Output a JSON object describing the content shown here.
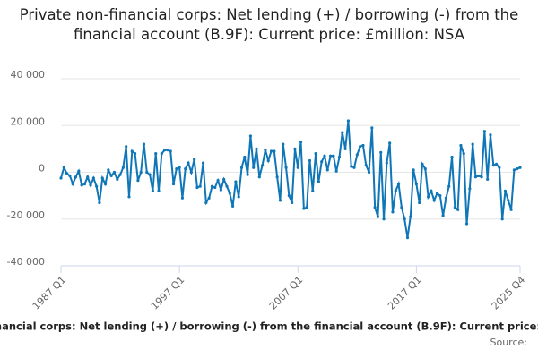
{
  "chart_data": {
    "type": "line",
    "title": "Private non-financial corps: Net lending (+) / borrowing (-) from the financial account (B.9F): Current price: £million: NSA",
    "source": "Source:",
    "categories": [
      "1987 Q1",
      null,
      null,
      null,
      null,
      null,
      null,
      null,
      null,
      null,
      null,
      null,
      null,
      null,
      null,
      null,
      null,
      null,
      null,
      null,
      null,
      null,
      null,
      null,
      null,
      null,
      null,
      null,
      null,
      null,
      null,
      null,
      null,
      null,
      null,
      null,
      null,
      null,
      null,
      null,
      "1997 Q1",
      null,
      null,
      null,
      null,
      null,
      null,
      null,
      null,
      null,
      null,
      null,
      null,
      null,
      null,
      null,
      null,
      null,
      null,
      null,
      null,
      null,
      null,
      null,
      null,
      null,
      null,
      null,
      null,
      null,
      null,
      null,
      null,
      null,
      null,
      null,
      null,
      null,
      null,
      null,
      "2007 Q1",
      null,
      null,
      null,
      null,
      null,
      null,
      null,
      null,
      null,
      null,
      null,
      null,
      null,
      null,
      null,
      null,
      null,
      null,
      null,
      null,
      null,
      null,
      null,
      null,
      null,
      null,
      null,
      null,
      null,
      null,
      null,
      null,
      null,
      null,
      null,
      null,
      null,
      null,
      null,
      "2017 Q1",
      null,
      null,
      null,
      null,
      null,
      null,
      null,
      null,
      null,
      null,
      null,
      null,
      null,
      null,
      null,
      null,
      null,
      null,
      null,
      null,
      null,
      null,
      null,
      null,
      null,
      null,
      null,
      null,
      null,
      null,
      null,
      null,
      null,
      null,
      "2025 Q4"
    ],
    "series": [
      {
        "name": "Private non-financial corps: Net lending (+) / borrowing (-) from the financial account (B.9F): Current price: £million: NSA",
        "color": "#0f76b8",
        "values": [
          -2500,
          2000,
          -500,
          -1500,
          -5000,
          -2000,
          500,
          -5500,
          -5000,
          -2000,
          -5500,
          -2500,
          -6000,
          -13000,
          -2500,
          -5000,
          1000,
          -1500,
          0,
          -3000,
          -1000,
          2000,
          11000,
          -10500,
          9000,
          8000,
          -3500,
          0,
          12000,
          0,
          -1000,
          -8000,
          8000,
          -8000,
          8000,
          9500,
          9500,
          9000,
          -5000,
          1500,
          2000,
          -11000,
          1500,
          4000,
          0,
          5500,
          -6500,
          -6000,
          4000,
          -13000,
          -11000,
          -6000,
          -6500,
          -3500,
          -7500,
          -3000,
          -6000,
          -9000,
          -14500,
          -4000,
          -10500,
          2000,
          6500,
          -1000,
          15500,
          2000,
          10000,
          -2000,
          3000,
          9500,
          5000,
          9000,
          9000,
          -2000,
          -12000,
          12000,
          2000,
          -10000,
          -13000,
          10000,
          2000,
          13000,
          -15500,
          -15000,
          5000,
          -8000,
          8000,
          -4000,
          4500,
          7000,
          1000,
          7000,
          7000,
          500,
          6500,
          17000,
          10000,
          22000,
          2500,
          2000,
          7500,
          11000,
          11500,
          3000,
          0,
          19000,
          -15000,
          -19000,
          8500,
          -20000,
          4000,
          12500,
          -17000,
          -8000,
          -5000,
          -15000,
          -20000,
          -28000,
          -19000,
          1000,
          -5000,
          -13000,
          3500,
          1500,
          -10500,
          -8000,
          -12000,
          -9000,
          -10000,
          -18500,
          -11000,
          -6000,
          6500,
          -15000,
          -16000,
          11500,
          8000,
          -22000,
          -7000,
          12000,
          -2000,
          -1500,
          -2000,
          17500,
          -3000,
          16000,
          3000,
          3500,
          2000,
          -20000,
          -8000,
          -12000,
          -16000,
          1000,
          1500,
          2000
        ]
      }
    ],
    "ylim": [
      -40000,
      40000
    ],
    "yticks": [
      {
        "value": -40000,
        "label": "-40 000"
      },
      {
        "value": -20000,
        "label": "-20 000"
      },
      0,
      {
        "value": 20000,
        "label": "20 000"
      },
      {
        "value": 40000,
        "label": "40 000"
      }
    ],
    "grid": true
  }
}
